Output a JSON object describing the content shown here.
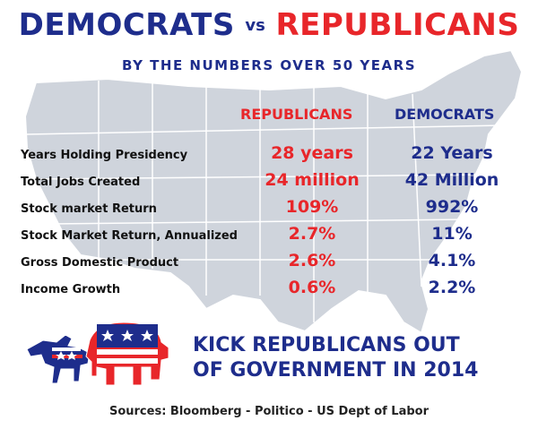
{
  "header": {
    "title_democrats": "DEMOCRATS",
    "title_vs": "vs",
    "title_republicans": "REPUBLICANS",
    "subtitle": "BY THE NUMBERS OVER 50 YEARS"
  },
  "columns": {
    "republicans": "REPUBLICANS",
    "democrats": "DEMOCRATS"
  },
  "rows": [
    {
      "label": "Years Holding Presidency",
      "republicans": "28 years",
      "democrats": "22 Years"
    },
    {
      "label": "Total Jobs Created",
      "republicans": "24 million",
      "democrats": "42 Million"
    },
    {
      "label": "Stock market Return",
      "republicans": "109%",
      "democrats": "992%"
    },
    {
      "label": "Stock Market Return, Annualized",
      "republicans": "2.7%",
      "democrats": "11%"
    },
    {
      "label": "Gross Domestic Product",
      "republicans": "2.6%",
      "democrats": "4.1%"
    },
    {
      "label": "Income Growth",
      "republicans": "0.6%",
      "democrats": "2.2%"
    }
  ],
  "slogan": {
    "line1": "KICK REPUBLICANS OUT",
    "line2": "OF GOVERNMENT IN 2014"
  },
  "sources": "Sources:  Bloomberg - Politico - US Dept of Labor",
  "colors": {
    "democrat_blue": "#1e2d8c",
    "republican_red": "#e8262a",
    "map_fill": "#cfd4dc",
    "map_stroke": "#ffffff"
  }
}
